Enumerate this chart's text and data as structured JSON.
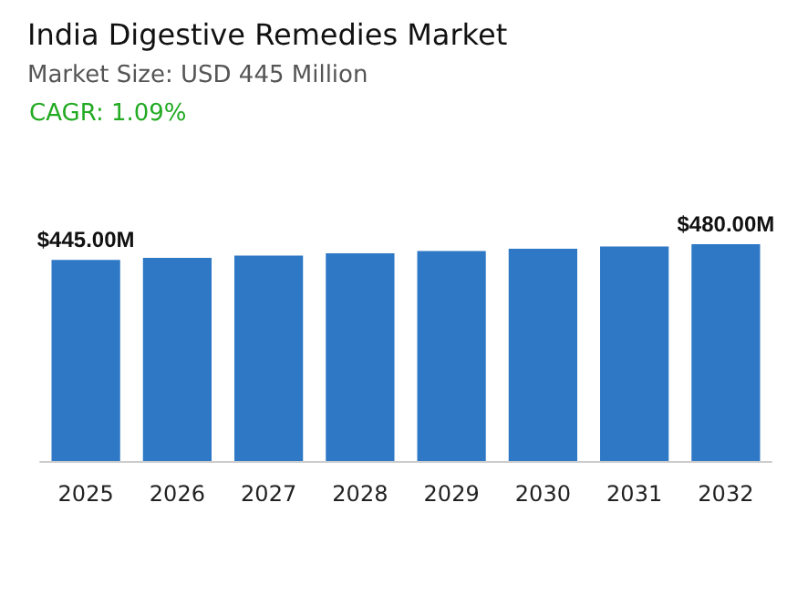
{
  "chart_data": {
    "type": "bar",
    "title": "India Digestive Remedies Market",
    "subtitle": "Market Size: USD 445 Million",
    "annotations": [
      "CAGR: 1.09%"
    ],
    "categories": [
      "2025",
      "2026",
      "2027",
      "2028",
      "2029",
      "2030",
      "2031",
      "2032"
    ],
    "values": [
      445,
      450,
      455,
      460,
      465,
      470,
      475,
      480
    ],
    "value_labels": [
      "$445.00M",
      null,
      null,
      null,
      null,
      null,
      null,
      "$480.00M"
    ],
    "color": "#2e78c6"
  }
}
